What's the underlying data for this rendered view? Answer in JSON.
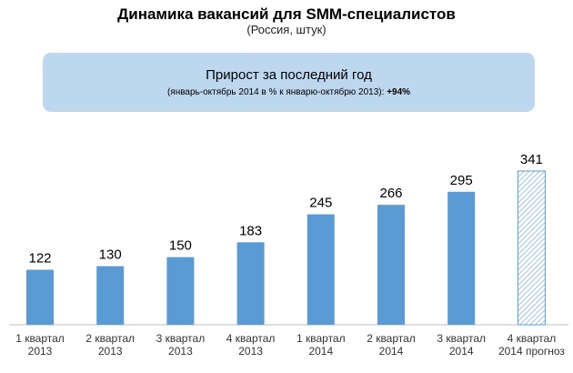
{
  "chart_data": {
    "type": "bar",
    "title": "Динамика вакансий для SMM-специалистов",
    "subtitle": "(Россия, штук)",
    "categories": [
      [
        "1 квартал",
        "2013"
      ],
      [
        "2 квартал",
        "2013"
      ],
      [
        "3 квартал",
        "2013"
      ],
      [
        "4 квартал",
        "2013"
      ],
      [
        "1 квартал",
        "2014"
      ],
      [
        "2 квартал",
        "2014"
      ],
      [
        "3 квартал",
        "2014"
      ],
      [
        "4 квартал",
        "2014 прогноз"
      ]
    ],
    "values": [
      122,
      130,
      150,
      183,
      245,
      266,
      295,
      341
    ],
    "forecast": [
      false,
      false,
      false,
      false,
      false,
      false,
      false,
      true
    ],
    "ylim": [
      0,
      341
    ],
    "bar_color": "#5b9bd5",
    "xlabel": "",
    "ylabel": ""
  },
  "callout": {
    "heading": "Прирост за последний год",
    "detail": "(январь-октябрь 2014 в % к январю-октябрю 2013):",
    "value": "+94%"
  }
}
